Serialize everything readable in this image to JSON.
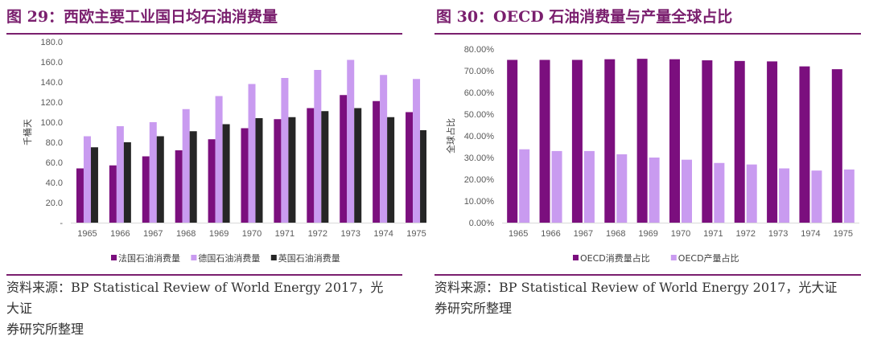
{
  "left": {
    "title": "图 29：西欧主要工业国日均石油消费量",
    "source_line1": "资料来源：BP Statistical Review of World Energy 2017，光大证",
    "source_line2": "券研究所整理"
  },
  "right": {
    "title": "图 30：OECD 石油消费量与产量全球占比",
    "source_line1": "资料来源：BP Statistical Review of World Energy 2017，光大证",
    "source_line2": "券研究所整理"
  },
  "colors": {
    "purple": "#7b0f7e",
    "lavender": "#c99bf0",
    "black": "#262626",
    "accent": "#7a1f6e"
  },
  "chart_data": [
    {
      "type": "bar",
      "categories": [
        "1965",
        "1966",
        "1967",
        "1968",
        "1969",
        "1970",
        "1971",
        "1972",
        "1973",
        "1974",
        "1975"
      ],
      "ylabel": "千桶天",
      "ylim": [
        0,
        180
      ],
      "ytick_labels": [
        "-",
        "20.0",
        "40.0",
        "60.0",
        "80.0",
        "100.0",
        "120.0",
        "140.0",
        "160.0",
        "180.0"
      ],
      "grid": false,
      "legend_position": "bottom",
      "series": [
        {
          "name": "法国石油消费量",
          "color": "#7b0f7e",
          "values": [
            54,
            57,
            66,
            72,
            83,
            94,
            103,
            114,
            127,
            121,
            110
          ]
        },
        {
          "name": "德国石油消费量",
          "color": "#c99bf0",
          "values": [
            86,
            96,
            100,
            113,
            126,
            138,
            144,
            152,
            162,
            147,
            143
          ]
        },
        {
          "name": "英国石油消费量",
          "color": "#262626",
          "values": [
            75,
            80,
            86,
            91,
            98,
            104,
            105,
            111,
            114,
            105,
            92
          ]
        }
      ]
    },
    {
      "type": "bar",
      "categories": [
        "1965",
        "1966",
        "1967",
        "1968",
        "1969",
        "1970",
        "1971",
        "1972",
        "1973",
        "1974",
        "1975"
      ],
      "ylabel": "全球占比",
      "ylim": [
        0,
        80
      ],
      "ytick_labels": [
        "0.00%",
        "10.00%",
        "20.00%",
        "30.00%",
        "40.00%",
        "50.00%",
        "60.00%",
        "70.00%",
        "80.00%"
      ],
      "grid": false,
      "legend_position": "bottom",
      "series": [
        {
          "name": "OECD消费量占比",
          "color": "#7b0f7e",
          "values": [
            75.0,
            75.0,
            75.0,
            75.3,
            75.5,
            75.3,
            74.8,
            74.5,
            74.3,
            72.0,
            70.7
          ]
        },
        {
          "name": "OECD产量占比",
          "color": "#c99bf0",
          "values": [
            33.8,
            33.0,
            33.0,
            31.5,
            30.0,
            29.0,
            27.5,
            26.8,
            25.0,
            24.0,
            24.5
          ]
        }
      ]
    }
  ]
}
